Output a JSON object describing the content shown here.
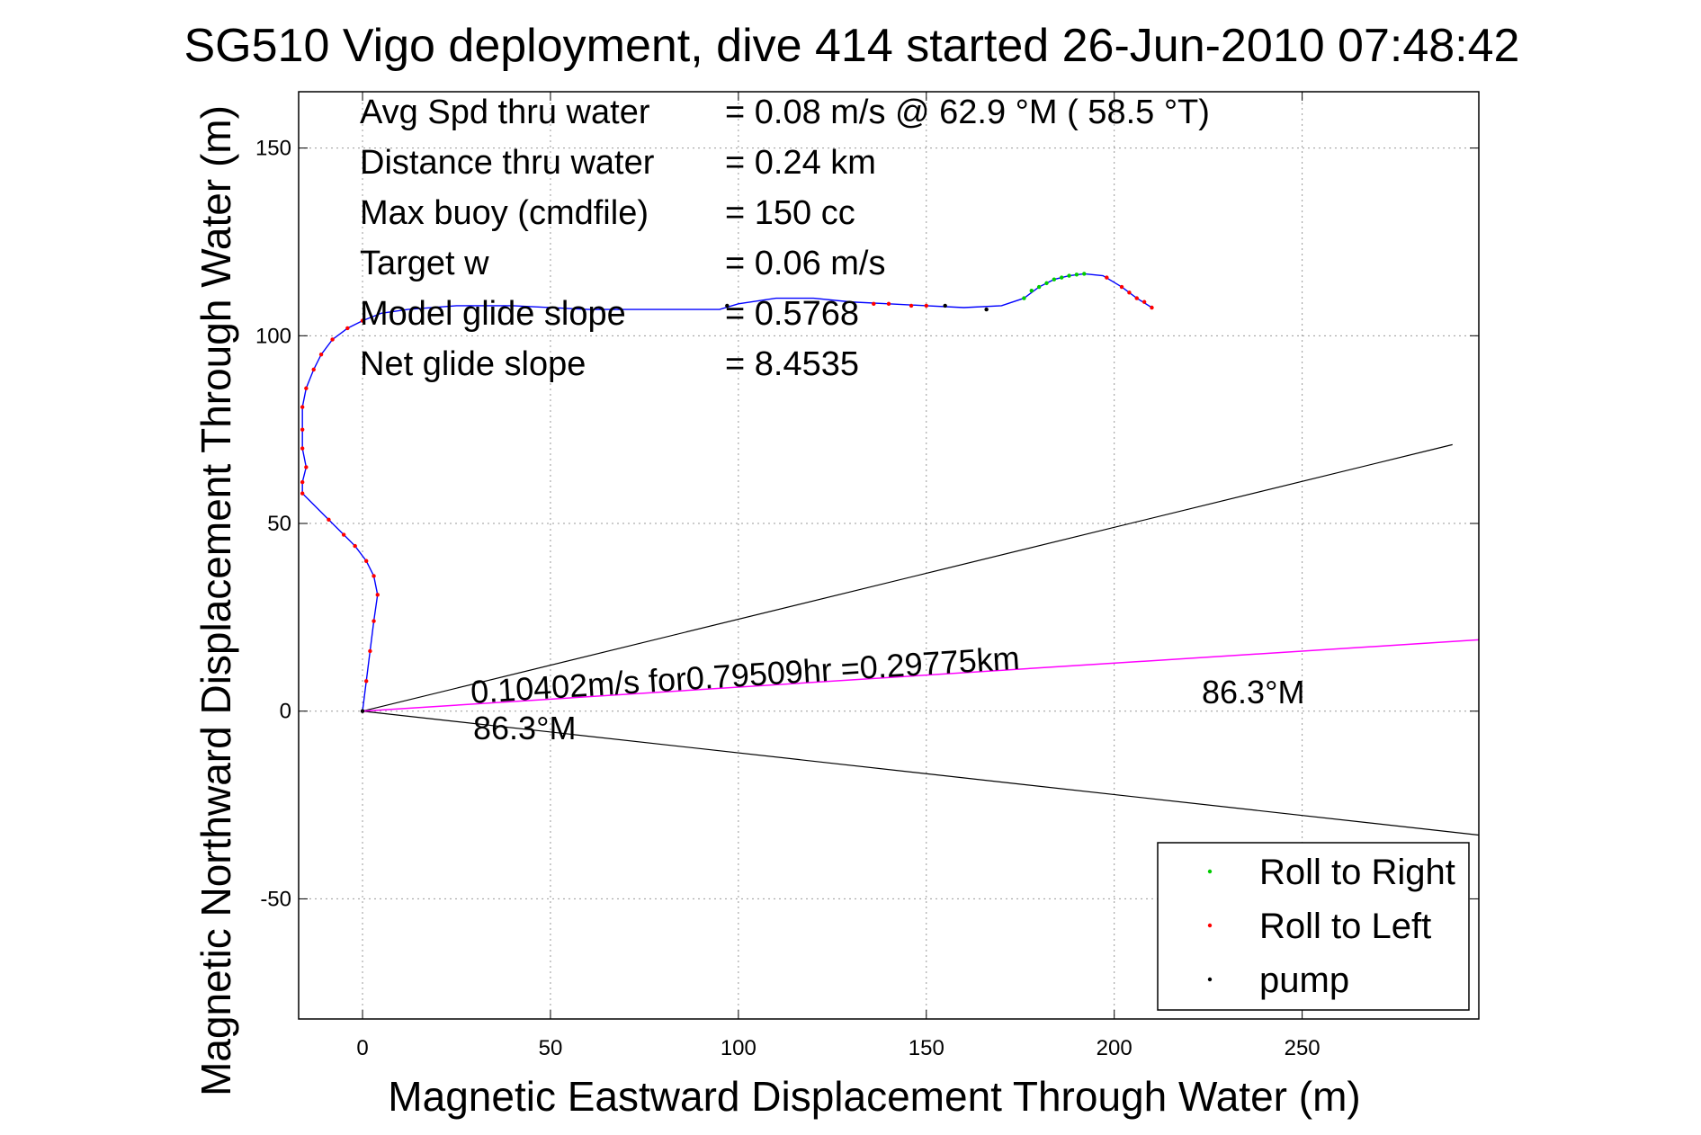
{
  "chart_data": {
    "type": "line",
    "title": "SG510 Vigo deployment, dive 414 started 26-Jun-2010 07:48:42",
    "xlabel": "Magnetic Eastward Displacement Through Water (m)",
    "ylabel": "Magnetic Northward Displacement Through Water (m)",
    "xlim": [
      -17,
      297
    ],
    "ylim": [
      -82,
      165
    ],
    "xticks": [
      0,
      50,
      100,
      150,
      200,
      250
    ],
    "yticks": [
      -50,
      0,
      50,
      100,
      150
    ],
    "grid": true,
    "legend_position": "bottom-right",
    "stats": [
      {
        "label": "Avg Spd thru water",
        "value": "=  0.08 m/s @  62.9 °M ( 58.5 °T)"
      },
      {
        "label": "Distance thru water",
        "value": "=  0.24 km"
      },
      {
        "label": "Max buoy (cmdfile)",
        "value": "= 150 cc"
      },
      {
        "label": "Target w",
        "value": "= 0.06 m/s"
      },
      {
        "label": "Model glide slope",
        "value": "= 0.5768"
      },
      {
        "label": "Net glide slope",
        "value": "= 8.4535"
      }
    ],
    "annotations": {
      "current_text": "0.10402m/s for0.79509hr =0.29775km",
      "heading_near": "86.3°M",
      "heading_far": "86.3°M"
    },
    "current_vector": {
      "heading_deg_mag": 86.3,
      "end": [
        297,
        19
      ]
    },
    "cone_lines": [
      {
        "end": [
          290,
          71
        ]
      },
      {
        "end": [
          297,
          -33
        ]
      }
    ],
    "track": [
      [
        0,
        0
      ],
      [
        1,
        8
      ],
      [
        2,
        16
      ],
      [
        3,
        24
      ],
      [
        4,
        31
      ],
      [
        3,
        36
      ],
      [
        1,
        40
      ],
      [
        -2,
        44
      ],
      [
        -5,
        47
      ],
      [
        -9,
        51
      ],
      [
        -13,
        55
      ],
      [
        -16,
        58
      ],
      [
        -16,
        61
      ],
      [
        -15,
        65
      ],
      [
        -16,
        70
      ],
      [
        -16,
        75
      ],
      [
        -16,
        81
      ],
      [
        -15,
        86
      ],
      [
        -13,
        91
      ],
      [
        -11,
        95
      ],
      [
        -8,
        99
      ],
      [
        -4,
        102
      ],
      [
        0,
        104
      ],
      [
        5,
        106
      ],
      [
        12,
        107
      ],
      [
        25,
        108
      ],
      [
        40,
        108
      ],
      [
        60,
        107
      ],
      [
        80,
        107
      ],
      [
        95,
        107
      ],
      [
        100,
        108.5
      ],
      [
        110,
        110
      ],
      [
        120,
        110
      ],
      [
        130,
        109
      ],
      [
        140,
        108.5
      ],
      [
        150,
        108
      ],
      [
        160,
        107.5
      ],
      [
        170,
        108
      ],
      [
        176,
        110
      ],
      [
        180,
        113
      ],
      [
        184,
        115
      ],
      [
        188,
        116
      ],
      [
        192,
        116.5
      ],
      [
        197,
        116
      ],
      [
        202,
        113
      ],
      [
        206,
        110
      ],
      [
        210,
        107.5
      ]
    ],
    "series": [
      {
        "name": "Roll to Right",
        "color": "#00cc00",
        "points": [
          [
            176,
            110
          ],
          [
            178,
            112
          ],
          [
            180,
            113
          ],
          [
            182,
            114
          ],
          [
            184,
            115
          ],
          [
            186,
            115.5
          ],
          [
            188,
            116
          ],
          [
            190,
            116.3
          ],
          [
            192,
            116.5
          ]
        ]
      },
      {
        "name": "Roll to Left",
        "color": "#ff0000",
        "points": [
          [
            1,
            8
          ],
          [
            2,
            16
          ],
          [
            3,
            24
          ],
          [
            4,
            31
          ],
          [
            3,
            36
          ],
          [
            1,
            40
          ],
          [
            -2,
            44
          ],
          [
            -5,
            47
          ],
          [
            -9,
            51
          ],
          [
            -16,
            58
          ],
          [
            -16,
            61
          ],
          [
            -15,
            65
          ],
          [
            -16,
            70
          ],
          [
            -16,
            75
          ],
          [
            -16,
            81
          ],
          [
            -15,
            86
          ],
          [
            -13,
            91
          ],
          [
            -11,
            95
          ],
          [
            -8,
            99
          ],
          [
            -4,
            102
          ],
          [
            0,
            104
          ],
          [
            136,
            108.5
          ],
          [
            140,
            108.5
          ],
          [
            146,
            108
          ],
          [
            150,
            108
          ],
          [
            198,
            115.5
          ],
          [
            202,
            113
          ],
          [
            204,
            111.5
          ],
          [
            206,
            110
          ],
          [
            208,
            109
          ],
          [
            210,
            107.5
          ]
        ]
      },
      {
        "name": "pump",
        "color": "#000000",
        "points": [
          [
            0,
            0
          ],
          [
            97,
            108
          ],
          [
            155,
            108
          ],
          [
            166,
            107
          ]
        ]
      }
    ]
  }
}
